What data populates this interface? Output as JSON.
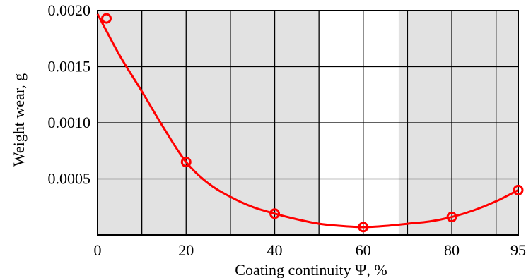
{
  "chart_data": {
    "type": "scatter",
    "title": "",
    "xlabel": "Coating continuity Ψ, %",
    "ylabel": "Weight wear, g",
    "xlim": [
      0,
      95
    ],
    "ylim": [
      0,
      0.002
    ],
    "x_ticks": [
      0,
      20,
      40,
      60,
      80,
      95
    ],
    "x_tick_labels": [
      "0",
      "20",
      "40",
      "60",
      "80",
      "95"
    ],
    "y_ticks": [
      0.0005,
      0.001,
      0.0015,
      0.002
    ],
    "y_tick_labels": [
      "0.0005",
      "0.0010",
      "0.0015",
      "0.0020"
    ],
    "grid": true,
    "highlight_x_range": [
      50,
      68
    ],
    "series": [
      {
        "points": [
          {
            "x": 2,
            "y": 0.00193
          },
          {
            "x": 20,
            "y": 0.00065
          },
          {
            "x": 40,
            "y": 0.00019
          },
          {
            "x": 60,
            "y": 7e-05
          },
          {
            "x": 80,
            "y": 0.00016
          },
          {
            "x": 95,
            "y": 0.0004
          }
        ],
        "fit_curve": [
          {
            "x": 0,
            "y": 0.00197
          },
          {
            "x": 5,
            "y": 0.0016
          },
          {
            "x": 10,
            "y": 0.00128
          },
          {
            "x": 15,
            "y": 0.00095
          },
          {
            "x": 20,
            "y": 0.00065
          },
          {
            "x": 25,
            "y": 0.00046
          },
          {
            "x": 30,
            "y": 0.00034
          },
          {
            "x": 35,
            "y": 0.00025
          },
          {
            "x": 40,
            "y": 0.00019
          },
          {
            "x": 45,
            "y": 0.00014
          },
          {
            "x": 50,
            "y": 0.0001
          },
          {
            "x": 55,
            "y": 8e-05
          },
          {
            "x": 60,
            "y": 7e-05
          },
          {
            "x": 65,
            "y": 8e-05
          },
          {
            "x": 70,
            "y": 0.0001
          },
          {
            "x": 75,
            "y": 0.00012
          },
          {
            "x": 80,
            "y": 0.00016
          },
          {
            "x": 85,
            "y": 0.00022
          },
          {
            "x": 90,
            "y": 0.0003
          },
          {
            "x": 95,
            "y": 0.0004
          }
        ]
      }
    ]
  },
  "colors": {
    "plot_background": "#e2e2e2",
    "highlight_band": "#ffffff",
    "grid": "#000000",
    "series": "#ff0000"
  }
}
